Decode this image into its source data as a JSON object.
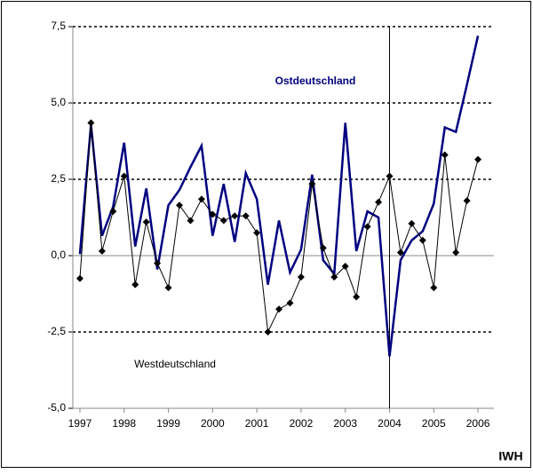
{
  "chart_data": {
    "type": "line",
    "x": [
      1997,
      1997.25,
      1997.5,
      1997.75,
      1998,
      1998.25,
      1998.5,
      1998.75,
      1999,
      1999.25,
      1999.5,
      1999.75,
      2000,
      2000.25,
      2000.5,
      2000.75,
      2001,
      2001.25,
      2001.5,
      2001.75,
      2002,
      2002.25,
      2002.5,
      2002.75,
      2003,
      2003.25,
      2003.5,
      2003.75,
      2004,
      2004.25,
      2004.5,
      2004.75,
      2005,
      2005.25,
      2005.5,
      2005.75,
      2006
    ],
    "series": [
      {
        "name": "Ostdeutschland",
        "color": "#000080",
        "markers": false,
        "values": [
          0.05,
          4.3,
          0.65,
          1.6,
          3.7,
          0.3,
          2.2,
          -0.45,
          1.65,
          2.15,
          2.9,
          3.6,
          0.65,
          2.35,
          0.45,
          2.7,
          1.85,
          -0.95,
          1.15,
          -0.55,
          0.2,
          2.65,
          -0.15,
          -0.6,
          4.35,
          0.15,
          1.45,
          1.25,
          -3.3,
          -0.15,
          0.5,
          0.8,
          1.7,
          4.2,
          4.05,
          5.6,
          7.2
        ]
      },
      {
        "name": "Westdeutschland",
        "color": "#000000",
        "markers": true,
        "values": [
          -0.75,
          4.35,
          0.15,
          1.45,
          2.6,
          -0.95,
          1.1,
          -0.25,
          -1.05,
          1.65,
          1.15,
          1.85,
          1.35,
          1.15,
          1.3,
          1.3,
          0.75,
          -2.5,
          -1.75,
          -1.55,
          -0.7,
          2.35,
          0.25,
          -0.7,
          -0.35,
          -1.35,
          0.95,
          1.75,
          2.6,
          0.1,
          1.05,
          0.5,
          -1.05,
          3.3,
          0.1,
          1.8,
          3.15
        ]
      }
    ],
    "xlim": [
      1996.84,
      2006.36
    ],
    "ylim": [
      -5,
      7.5
    ],
    "xticks": [
      1997,
      1998,
      1999,
      2000,
      2001,
      2002,
      2003,
      2004,
      2005,
      2006
    ],
    "yticks": [
      {
        "value": -5,
        "label": "-5,0"
      },
      {
        "value": -2.5,
        "label": "-2,5"
      },
      {
        "value": 0,
        "label": "0,0"
      },
      {
        "value": 2.5,
        "label": "2,5"
      },
      {
        "value": 5,
        "label": "5,0"
      },
      {
        "value": 7.5,
        "label": "7,5"
      }
    ],
    "vline_x": 2004,
    "grid": true,
    "source": "IWH"
  }
}
